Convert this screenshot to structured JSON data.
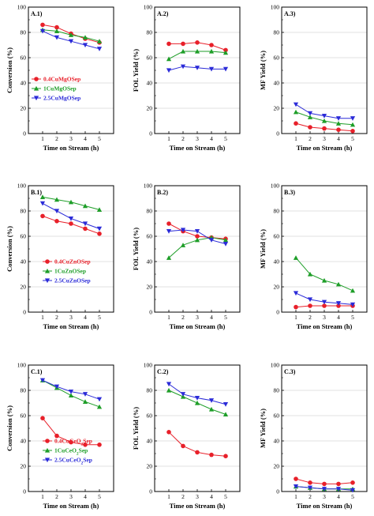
{
  "figure": {
    "xlabel": "Time on Stream (h)",
    "colors": {
      "red": "#e8202a",
      "green": "#1e9e28",
      "blue": "#2b2bd8"
    }
  },
  "chart_data": [
    {
      "id": "A.1",
      "panel_label": "A.1)",
      "type": "line",
      "ylabel": "Conversion (%)",
      "xlabel": "Time on Stream (h)",
      "x": [
        1,
        2,
        3,
        4,
        5
      ],
      "xlim": [
        0,
        6
      ],
      "ylim": [
        0,
        100
      ],
      "xticks": [
        1,
        2,
        3,
        4,
        5
      ],
      "yticks": [
        0,
        20,
        40,
        60,
        80,
        100
      ],
      "grid": true,
      "legend": "center-left",
      "series": [
        {
          "name": "0.4CuMgOSep",
          "color": "#e8202a",
          "marker": "circle",
          "values": [
            86,
            84,
            79,
            75,
            72
          ]
        },
        {
          "name": "1CuMgOSep",
          "color": "#1e9e28",
          "marker": "triangle-up",
          "values": [
            82,
            81,
            78,
            76,
            73
          ]
        },
        {
          "name": "2.5CuMgOSep",
          "color": "#2b2bd8",
          "marker": "triangle-down",
          "values": [
            81,
            76,
            73,
            70,
            67
          ]
        }
      ]
    },
    {
      "id": "A.2",
      "panel_label": "A.2)",
      "type": "line",
      "ylabel": "FOL Yield (%)",
      "xlabel": "Time on Stream (h)",
      "x": [
        1,
        2,
        3,
        4,
        5
      ],
      "xlim": [
        0,
        6
      ],
      "ylim": [
        0,
        100
      ],
      "xticks": [
        1,
        2,
        3,
        4,
        5
      ],
      "yticks": [
        0,
        20,
        40,
        60,
        80,
        100
      ],
      "grid": true,
      "legend": "",
      "series": [
        {
          "name": "0.4CuMgOSep",
          "color": "#e8202a",
          "marker": "circle",
          "values": [
            71,
            71,
            72,
            70,
            66
          ]
        },
        {
          "name": "1CuMgOSep",
          "color": "#1e9e28",
          "marker": "triangle-up",
          "values": [
            59,
            65,
            65,
            65,
            64
          ]
        },
        {
          "name": "2.5CuMgOSep",
          "color": "#2b2bd8",
          "marker": "triangle-down",
          "values": [
            50,
            53,
            52,
            51,
            51
          ]
        }
      ]
    },
    {
      "id": "A.3",
      "panel_label": "A.3)",
      "type": "line",
      "ylabel": "MF Yield (%)",
      "xlabel": "Time on Stream (h)",
      "x": [
        1,
        2,
        3,
        4,
        5
      ],
      "xlim": [
        0,
        6
      ],
      "ylim": [
        0,
        100
      ],
      "xticks": [
        1,
        2,
        3,
        4,
        5
      ],
      "yticks": [
        0,
        20,
        40,
        60,
        80,
        100
      ],
      "grid": true,
      "legend": "",
      "series": [
        {
          "name": "0.4CuMgOSep",
          "color": "#e8202a",
          "marker": "circle",
          "values": [
            8,
            5,
            4,
            3,
            2
          ]
        },
        {
          "name": "1CuMgOSep",
          "color": "#1e9e28",
          "marker": "triangle-up",
          "values": [
            17,
            13,
            10,
            8,
            7
          ]
        },
        {
          "name": "2.5CuMgOSep",
          "color": "#2b2bd8",
          "marker": "triangle-down",
          "values": [
            23,
            16,
            14,
            12,
            12
          ]
        }
      ]
    },
    {
      "id": "B.1",
      "panel_label": "B.1)",
      "type": "line",
      "ylabel": "Conversion (%)",
      "xlabel": "Time on Stream (h)",
      "x": [
        1,
        2,
        3,
        4,
        5
      ],
      "xlim": [
        0,
        6
      ],
      "ylim": [
        0,
        100
      ],
      "xticks": [
        1,
        2,
        3,
        4,
        5
      ],
      "yticks": [
        0,
        20,
        40,
        60,
        80,
        100
      ],
      "grid": true,
      "legend": "lower-right",
      "series": [
        {
          "name": "0.4CuZnOSep",
          "color": "#e8202a",
          "marker": "circle",
          "values": [
            76,
            72,
            70,
            66,
            62
          ]
        },
        {
          "name": "1CuZnOSep",
          "color": "#1e9e28",
          "marker": "triangle-up",
          "values": [
            91,
            89,
            87,
            84,
            81
          ]
        },
        {
          "name": "2.5CuZnOSep",
          "color": "#2b2bd8",
          "marker": "triangle-down",
          "values": [
            86,
            80,
            74,
            70,
            66
          ]
        }
      ]
    },
    {
      "id": "B.2",
      "panel_label": "B.2)",
      "type": "line",
      "ylabel": "FOL Yield (%)",
      "xlabel": "Time on Stream (h)",
      "x": [
        1,
        2,
        3,
        4,
        5
      ],
      "xlim": [
        0,
        6
      ],
      "ylim": [
        0,
        100
      ],
      "xticks": [
        1,
        2,
        3,
        4,
        5
      ],
      "yticks": [
        0,
        20,
        40,
        60,
        80,
        100
      ],
      "grid": true,
      "legend": "",
      "series": [
        {
          "name": "0.4CuZnOSep",
          "color": "#e8202a",
          "marker": "circle",
          "values": [
            70,
            64,
            60,
            59,
            58
          ]
        },
        {
          "name": "1CuZnOSep",
          "color": "#1e9e28",
          "marker": "triangle-up",
          "values": [
            43,
            53,
            57,
            59,
            57
          ]
        },
        {
          "name": "2.5CuZnOSep",
          "color": "#2b2bd8",
          "marker": "triangle-down",
          "values": [
            64,
            65,
            64,
            57,
            54
          ]
        }
      ]
    },
    {
      "id": "B.3",
      "panel_label": "B.3)",
      "type": "line",
      "ylabel": "MF Yield (%)",
      "xlabel": "Time on Stream (h)",
      "x": [
        1,
        2,
        3,
        4,
        5
      ],
      "xlim": [
        0,
        6
      ],
      "ylim": [
        0,
        100
      ],
      "xticks": [
        1,
        2,
        3,
        4,
        5
      ],
      "yticks": [
        0,
        20,
        40,
        60,
        80,
        100
      ],
      "grid": true,
      "legend": "",
      "series": [
        {
          "name": "0.4CuZnOSep",
          "color": "#e8202a",
          "marker": "circle",
          "values": [
            4,
            5,
            5,
            5,
            5
          ]
        },
        {
          "name": "1CuZnOSep",
          "color": "#1e9e28",
          "marker": "triangle-up",
          "values": [
            43,
            30,
            25,
            22,
            17
          ]
        },
        {
          "name": "2.5CuZnOSep",
          "color": "#2b2bd8",
          "marker": "triangle-down",
          "values": [
            15,
            10,
            8,
            7,
            6
          ]
        }
      ]
    },
    {
      "id": "C.1",
      "panel_label": "C.1)",
      "type": "line",
      "ylabel": "Conversion (%)",
      "xlabel": "Time on Stream (h)",
      "x": [
        1,
        2,
        3,
        4,
        5
      ],
      "xlim": [
        0,
        6
      ],
      "ylim": [
        0,
        100
      ],
      "xticks": [
        1,
        2,
        3,
        4,
        5
      ],
      "yticks": [
        0,
        20,
        40,
        60,
        80,
        100
      ],
      "grid": true,
      "legend": "lower-right",
      "series": [
        {
          "name": "0.4CuCeO",
          "subscript": "2",
          "suffix": "Sep",
          "color": "#e8202a",
          "marker": "circle",
          "values": [
            58,
            44,
            39,
            37,
            37
          ]
        },
        {
          "name": "1CuCeO",
          "subscript": "2",
          "suffix": "Sep",
          "color": "#1e9e28",
          "marker": "triangle-up",
          "values": [
            88,
            82,
            76,
            71,
            67
          ]
        },
        {
          "name": "2.5CuCeO",
          "subscript": "2",
          "suffix": "Sep",
          "color": "#2b2bd8",
          "marker": "triangle-down",
          "values": [
            88,
            83,
            79,
            77,
            73
          ]
        }
      ]
    },
    {
      "id": "C.2",
      "panel_label": "C.2)",
      "type": "line",
      "ylabel": "FOL Yield (%)",
      "xlabel": "Time on Stream (h)",
      "x": [
        1,
        2,
        3,
        4,
        5
      ],
      "xlim": [
        0,
        6
      ],
      "ylim": [
        0,
        100
      ],
      "xticks": [
        1,
        2,
        3,
        4,
        5
      ],
      "yticks": [
        0,
        20,
        40,
        60,
        80,
        100
      ],
      "grid": true,
      "legend": "",
      "series": [
        {
          "name": "0.4CuCeO2Sep",
          "color": "#e8202a",
          "marker": "circle",
          "values": [
            47,
            36,
            31,
            29,
            28
          ]
        },
        {
          "name": "1CuCeO2Sep",
          "color": "#1e9e28",
          "marker": "triangle-up",
          "values": [
            80,
            75,
            70,
            65,
            61
          ]
        },
        {
          "name": "2.5CuCeO2Sep",
          "color": "#2b2bd8",
          "marker": "triangle-down",
          "values": [
            85,
            77,
            74,
            72,
            69
          ]
        }
      ]
    },
    {
      "id": "C.3",
      "panel_label": "C.3)",
      "type": "line",
      "ylabel": "MF Yield (%)",
      "xlabel": "Time on Stream (h)",
      "x": [
        1,
        2,
        3,
        4,
        5
      ],
      "xlim": [
        0,
        6
      ],
      "ylim": [
        0,
        100
      ],
      "xticks": [
        1,
        2,
        3,
        4,
        5
      ],
      "yticks": [
        0,
        20,
        40,
        60,
        80,
        100
      ],
      "grid": true,
      "legend": "",
      "series": [
        {
          "name": "0.4CuCeO2Sep",
          "color": "#e8202a",
          "marker": "circle",
          "values": [
            10,
            7,
            6,
            6,
            7
          ]
        },
        {
          "name": "1CuCeO2Sep",
          "color": "#1e9e28",
          "marker": "triangle-up",
          "values": [
            4,
            3,
            2,
            2,
            2
          ]
        },
        {
          "name": "2.5CuCeO2Sep",
          "color": "#2b2bd8",
          "marker": "triangle-down",
          "values": [
            4,
            3,
            2,
            2,
            1
          ]
        }
      ]
    }
  ]
}
